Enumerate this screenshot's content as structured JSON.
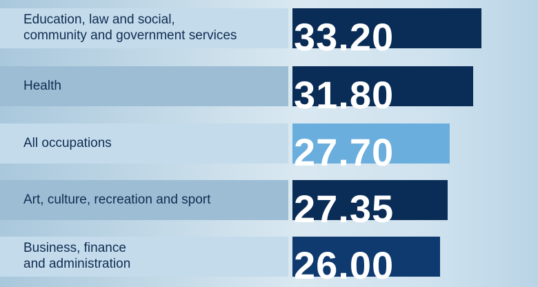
{
  "chart_data": {
    "type": "bar",
    "orientation": "horizontal",
    "categories": [
      "Education, law and social, community and government services",
      "Health",
      "All occupations",
      "Art, culture, recreation and sport",
      "Business, finance and administration"
    ],
    "label_lines": [
      [
        "Education, law and social,",
        "community and government services"
      ],
      [
        "Health"
      ],
      [
        "All occupations"
      ],
      [
        "Art, culture, recreation and sport"
      ],
      [
        "Business, finance",
        "and administration"
      ]
    ],
    "values": [
      33.2,
      31.8,
      27.7,
      27.35,
      26.0
    ],
    "value_labels": [
      "33.20",
      "31.80",
      "27.70",
      "27.35",
      "26.00"
    ],
    "bar_colors": [
      "#0a2d57",
      "#0a2d57",
      "#6aaede",
      "#0a2d57",
      "#0f3a70"
    ],
    "highlight_category": "All occupations",
    "grid": false,
    "legend": "none"
  }
}
